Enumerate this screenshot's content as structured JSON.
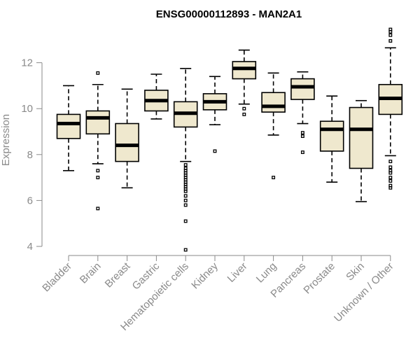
{
  "chart_data": {
    "type": "boxplot",
    "title": "ENSG00000112893 - MAN2A1",
    "ylabel": "Expression",
    "xlabel": "",
    "ylim": [
      3.8,
      13.6
    ],
    "yticks": [
      4,
      6,
      8,
      10,
      12
    ],
    "grid": false,
    "box_fill": "#efe8ce",
    "categories": [
      "Bladder",
      "Brain",
      "Breast",
      "Gastric",
      "Hematopoietic cells",
      "Kidney",
      "Liver",
      "Lung",
      "Pancreas",
      "Prostate",
      "Skin",
      "Unknown / Other"
    ],
    "boxes": [
      {
        "category": "Bladder",
        "whisker_low": 7.3,
        "q1": 8.7,
        "median": 9.35,
        "q3": 9.75,
        "whisker_high": 11.0,
        "outliers": []
      },
      {
        "category": "Brain",
        "whisker_low": 7.6,
        "q1": 8.9,
        "median": 9.6,
        "q3": 9.9,
        "whisker_high": 11.05,
        "outliers": [
          11.55,
          7.3,
          7.0,
          5.65
        ]
      },
      {
        "category": "Breast",
        "whisker_low": 6.55,
        "q1": 7.7,
        "median": 8.4,
        "q3": 9.35,
        "whisker_high": 10.85,
        "outliers": []
      },
      {
        "category": "Gastric",
        "whisker_low": 9.55,
        "q1": 9.9,
        "median": 10.35,
        "q3": 10.8,
        "whisker_high": 11.5,
        "outliers": []
      },
      {
        "category": "Hematopoietic cells",
        "whisker_low": 7.7,
        "q1": 9.2,
        "median": 9.8,
        "q3": 10.3,
        "whisker_high": 11.75,
        "outliers": [
          7.55,
          7.4,
          7.3,
          7.2,
          7.1,
          7.0,
          6.9,
          6.8,
          6.7,
          6.6,
          6.5,
          6.4,
          6.2,
          6.0,
          5.8,
          5.1,
          3.85
        ]
      },
      {
        "category": "Kidney",
        "whisker_low": 9.3,
        "q1": 9.95,
        "median": 10.3,
        "q3": 10.65,
        "whisker_high": 11.4,
        "outliers": [
          8.15
        ]
      },
      {
        "category": "Liver",
        "whisker_low": 10.2,
        "q1": 11.3,
        "median": 11.75,
        "q3": 12.05,
        "whisker_high": 12.55,
        "outliers": [
          10.0,
          9.75
        ]
      },
      {
        "category": "Lung",
        "whisker_low": 8.85,
        "q1": 9.85,
        "median": 10.1,
        "q3": 10.7,
        "whisker_high": 11.55,
        "outliers": [
          7.0
        ]
      },
      {
        "category": "Pancreas",
        "whisker_low": 9.35,
        "q1": 10.4,
        "median": 10.95,
        "q3": 11.3,
        "whisker_high": 11.6,
        "outliers": [
          8.95,
          8.8,
          8.1
        ]
      },
      {
        "category": "Prostate",
        "whisker_low": 6.8,
        "q1": 8.15,
        "median": 9.1,
        "q3": 9.45,
        "whisker_high": 10.55,
        "outliers": []
      },
      {
        "category": "Skin",
        "whisker_low": 5.95,
        "q1": 7.4,
        "median": 9.1,
        "q3": 10.05,
        "whisker_high": 10.35,
        "outliers": []
      },
      {
        "category": "Unknown / Other",
        "whisker_low": 7.95,
        "q1": 9.75,
        "median": 10.45,
        "q3": 11.05,
        "whisker_high": 12.65,
        "outliers": [
          13.45,
          13.35,
          13.2,
          12.95,
          7.7,
          7.45,
          7.3,
          7.2,
          7.0,
          6.85,
          6.65,
          6.55
        ]
      }
    ]
  }
}
